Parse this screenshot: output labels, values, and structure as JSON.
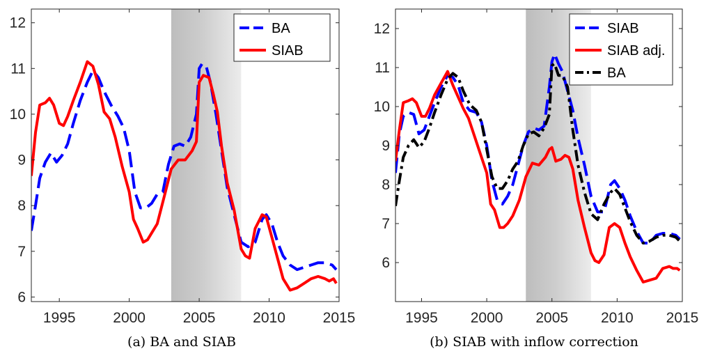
{
  "chart_data": [
    {
      "type": "line",
      "caption": "(a) BA and SIAB",
      "xlim": [
        1993,
        2015
      ],
      "ylim": [
        5.9,
        12.3
      ],
      "xticks": [
        1995,
        2000,
        2005,
        2010,
        2015
      ],
      "yticks": [
        6,
        7,
        8,
        9,
        10,
        11,
        12
      ],
      "shaded_region": [
        2003,
        2008
      ],
      "legend_position": "top-right",
      "series": [
        {
          "name": "BA",
          "color": "#0000ff",
          "style": "dashed",
          "x": [
            1993.0,
            1993.3,
            1993.6,
            1994.0,
            1994.4,
            1994.8,
            1995.2,
            1995.6,
            1996.0,
            1996.5,
            1997.0,
            1997.4,
            1997.8,
            1998.2,
            1998.7,
            1999.2,
            1999.6,
            2000.0,
            2000.4,
            2000.8,
            2001.2,
            2001.6,
            2002.0,
            2002.4,
            2002.8,
            2003.2,
            2003.6,
            2004.0,
            2004.4,
            2004.8,
            2005.0,
            2005.2,
            2005.5,
            2005.8,
            2006.2,
            2006.6,
            2007.0,
            2007.5,
            2008.0,
            2008.5,
            2009.0,
            2009.5,
            2009.8,
            2010.2,
            2010.6,
            2011.0,
            2011.5,
            2012.0,
            2012.5,
            2013.0,
            2013.5,
            2014.0,
            2014.5,
            2014.8
          ],
          "y": [
            7.45,
            8.0,
            8.6,
            8.95,
            9.15,
            8.95,
            9.1,
            9.35,
            9.8,
            10.3,
            10.7,
            10.95,
            10.8,
            10.5,
            10.2,
            9.95,
            9.7,
            9.2,
            8.3,
            7.95,
            7.95,
            8.05,
            8.25,
            8.3,
            8.9,
            9.3,
            9.35,
            9.3,
            9.5,
            10.0,
            11.0,
            11.1,
            11.05,
            10.7,
            10.0,
            9.2,
            8.4,
            7.8,
            7.2,
            7.1,
            7.2,
            7.7,
            7.8,
            7.6,
            7.2,
            6.9,
            6.7,
            6.6,
            6.65,
            6.7,
            6.75,
            6.75,
            6.7,
            6.6
          ]
        },
        {
          "name": "SIAB",
          "color": "#ff0000",
          "style": "solid",
          "x": [
            1993.0,
            1993.3,
            1993.6,
            1994.0,
            1994.3,
            1994.6,
            1995.0,
            1995.3,
            1995.6,
            1996.0,
            1996.5,
            1997.0,
            1997.4,
            1997.8,
            1998.2,
            1998.6,
            1999.0,
            1999.5,
            2000.0,
            2000.3,
            2000.6,
            2001.0,
            2001.3,
            2001.6,
            2002.0,
            2002.5,
            2003.0,
            2003.5,
            2004.0,
            2004.5,
            2004.8,
            2005.0,
            2005.3,
            2005.7,
            2006.0,
            2006.3,
            2006.6,
            2007.0,
            2007.5,
            2008.0,
            2008.3,
            2008.6,
            2009.0,
            2009.5,
            2009.8,
            2010.2,
            2010.6,
            2011.0,
            2011.5,
            2012.0,
            2012.5,
            2013.0,
            2013.5,
            2014.0,
            2014.3,
            2014.6,
            2014.8
          ],
          "y": [
            8.65,
            9.6,
            10.2,
            10.25,
            10.35,
            10.2,
            9.8,
            9.75,
            9.95,
            10.3,
            10.7,
            11.15,
            11.05,
            10.65,
            10.05,
            9.9,
            9.5,
            8.85,
            8.3,
            7.7,
            7.5,
            7.2,
            7.25,
            7.4,
            7.6,
            8.2,
            8.8,
            9.0,
            9.0,
            9.2,
            9.4,
            10.7,
            10.85,
            10.8,
            10.45,
            10.05,
            9.3,
            8.5,
            7.9,
            7.05,
            6.9,
            6.85,
            7.5,
            7.8,
            7.75,
            7.3,
            6.85,
            6.4,
            6.15,
            6.2,
            6.3,
            6.4,
            6.45,
            6.4,
            6.35,
            6.4,
            6.3
          ]
        }
      ]
    },
    {
      "type": "line",
      "caption": "(b) SIAB with inflow correction",
      "xlim": [
        1993,
        2015
      ],
      "ylim": [
        5.0,
        12.5
      ],
      "xticks": [
        1995,
        2000,
        2005,
        2010,
        2015
      ],
      "yticks": [
        6,
        7,
        8,
        9,
        10,
        11,
        12
      ],
      "shaded_region": [
        2003,
        2008
      ],
      "legend_position": "top-right",
      "series": [
        {
          "name": "SIAB",
          "color": "#0000ff",
          "style": "dashed",
          "x": [
            1993.0,
            1993.3,
            1993.6,
            1994.0,
            1994.4,
            1994.8,
            1995.2,
            1995.6,
            1996.0,
            1996.5,
            1997.0,
            1997.4,
            1997.8,
            1998.2,
            1998.7,
            1999.2,
            1999.6,
            2000.0,
            2000.4,
            2000.8,
            2001.2,
            2001.6,
            2002.0,
            2002.4,
            2002.8,
            2003.2,
            2003.6,
            2004.0,
            2004.4,
            2004.8,
            2005.0,
            2005.2,
            2005.5,
            2005.8,
            2006.2,
            2006.6,
            2007.0,
            2007.5,
            2008.0,
            2008.5,
            2009.0,
            2009.5,
            2009.8,
            2010.2,
            2010.6,
            2011.0,
            2011.5,
            2012.0,
            2012.5,
            2013.0,
            2013.5,
            2014.0,
            2014.5,
            2014.8
          ],
          "y": [
            8.3,
            9.3,
            9.75,
            9.85,
            9.8,
            9.3,
            9.4,
            9.75,
            10.1,
            10.5,
            10.8,
            10.75,
            10.55,
            10.1,
            9.9,
            9.85,
            9.6,
            9.0,
            8.1,
            7.6,
            7.5,
            7.7,
            8.0,
            8.5,
            9.0,
            9.35,
            9.45,
            9.4,
            9.5,
            10.5,
            11.15,
            11.35,
            11.1,
            10.9,
            10.4,
            9.9,
            9.2,
            8.5,
            7.7,
            7.3,
            7.3,
            8.0,
            8.1,
            7.9,
            7.6,
            7.2,
            6.8,
            6.5,
            6.5,
            6.7,
            6.75,
            6.75,
            6.7,
            6.6
          ]
        },
        {
          "name": "SIAB adj.",
          "color": "#ff0000",
          "style": "solid",
          "x": [
            1993.0,
            1993.3,
            1993.6,
            1994.0,
            1994.3,
            1994.6,
            1995.0,
            1995.3,
            1995.6,
            1996.0,
            1996.5,
            1997.0,
            1997.4,
            1997.8,
            1998.2,
            1998.6,
            1999.0,
            1999.5,
            2000.0,
            2000.3,
            2000.6,
            2001.0,
            2001.3,
            2001.6,
            2002.0,
            2002.5,
            2003.0,
            2003.5,
            2004.0,
            2004.5,
            2004.8,
            2005.0,
            2005.3,
            2005.7,
            2006.0,
            2006.3,
            2006.6,
            2007.0,
            2007.5,
            2008.0,
            2008.3,
            2008.6,
            2009.0,
            2009.4,
            2009.8,
            2010.2,
            2010.6,
            2011.0,
            2011.5,
            2012.0,
            2012.5,
            2013.0,
            2013.5,
            2014.0,
            2014.3,
            2014.6,
            2014.8
          ],
          "y": [
            8.6,
            9.4,
            10.1,
            10.15,
            10.2,
            10.1,
            9.75,
            9.75,
            9.95,
            10.3,
            10.6,
            10.9,
            10.55,
            10.25,
            9.95,
            9.7,
            9.3,
            8.8,
            8.3,
            7.5,
            7.35,
            6.9,
            6.9,
            7.0,
            7.2,
            7.6,
            8.2,
            8.55,
            8.5,
            8.7,
            8.9,
            8.95,
            8.6,
            8.65,
            8.75,
            8.7,
            8.4,
            7.6,
            6.9,
            6.25,
            6.05,
            6.0,
            6.2,
            6.9,
            7.0,
            6.9,
            6.5,
            6.15,
            5.8,
            5.5,
            5.55,
            5.6,
            5.85,
            5.9,
            5.85,
            5.85,
            5.8
          ]
        },
        {
          "name": "BA",
          "color": "#000000",
          "style": "dashdot",
          "x": [
            1993.0,
            1993.3,
            1993.6,
            1994.0,
            1994.4,
            1994.8,
            1995.2,
            1995.6,
            1996.0,
            1996.5,
            1997.0,
            1997.4,
            1997.8,
            1998.2,
            1998.7,
            1999.2,
            1999.6,
            2000.0,
            2000.4,
            2000.8,
            2001.2,
            2001.6,
            2002.0,
            2002.4,
            2002.8,
            2003.2,
            2003.6,
            2004.0,
            2004.4,
            2004.8,
            2005.0,
            2005.2,
            2005.5,
            2005.8,
            2006.2,
            2006.6,
            2007.0,
            2007.5,
            2008.0,
            2008.5,
            2009.0,
            2009.5,
            2009.8,
            2010.2,
            2010.6,
            2011.0,
            2011.5,
            2012.0,
            2012.5,
            2013.0,
            2013.5,
            2014.0,
            2014.5,
            2014.8
          ],
          "y": [
            7.45,
            8.1,
            8.7,
            9.0,
            9.15,
            8.95,
            9.1,
            9.45,
            9.85,
            10.3,
            10.7,
            10.85,
            10.75,
            10.4,
            10.05,
            9.9,
            9.6,
            8.9,
            8.2,
            7.9,
            7.9,
            8.1,
            8.4,
            8.6,
            9.0,
            9.3,
            9.35,
            9.25,
            9.45,
            9.8,
            11.05,
            11.1,
            10.8,
            10.8,
            10.5,
            9.4,
            8.5,
            7.8,
            7.25,
            7.1,
            7.5,
            7.8,
            7.9,
            7.75,
            7.4,
            7.05,
            6.7,
            6.5,
            6.55,
            6.65,
            6.7,
            6.7,
            6.65,
            6.55
          ]
        }
      ]
    }
  ]
}
